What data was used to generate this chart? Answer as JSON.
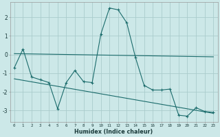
{
  "title": "",
  "xlabel": "Humidex (Indice chaleur)",
  "bg_color": "#cce8e8",
  "grid_color": "#aacccc",
  "line_color": "#1a6b6b",
  "xlim": [
    -0.5,
    23.5
  ],
  "ylim": [
    -3.6,
    2.8
  ],
  "x_ticks": [
    0,
    1,
    2,
    3,
    4,
    5,
    6,
    7,
    8,
    9,
    10,
    11,
    12,
    13,
    14,
    15,
    16,
    17,
    18,
    19,
    20,
    21,
    22,
    23
  ],
  "y_ticks": [
    -3,
    -2,
    -1,
    0,
    1,
    2
  ],
  "series1_x": [
    0,
    1,
    2,
    3,
    4,
    5,
    6,
    7,
    8,
    9,
    10,
    11,
    12,
    13,
    14,
    15,
    16,
    17,
    18,
    19,
    20,
    21,
    22,
    23
  ],
  "series1_y": [
    -0.7,
    0.3,
    -1.2,
    -1.35,
    -1.5,
    -2.9,
    -1.5,
    -0.85,
    -1.45,
    -1.5,
    1.1,
    2.5,
    2.4,
    1.7,
    -0.15,
    -1.65,
    -1.9,
    -1.9,
    -1.85,
    -3.25,
    -3.3,
    -2.85,
    -3.05,
    -3.1
  ],
  "trend1_x": [
    0,
    23
  ],
  "trend1_y": [
    0.05,
    -0.12
  ],
  "trend2_x": [
    0,
    23
  ],
  "trend2_y": [
    -1.3,
    -3.15
  ]
}
